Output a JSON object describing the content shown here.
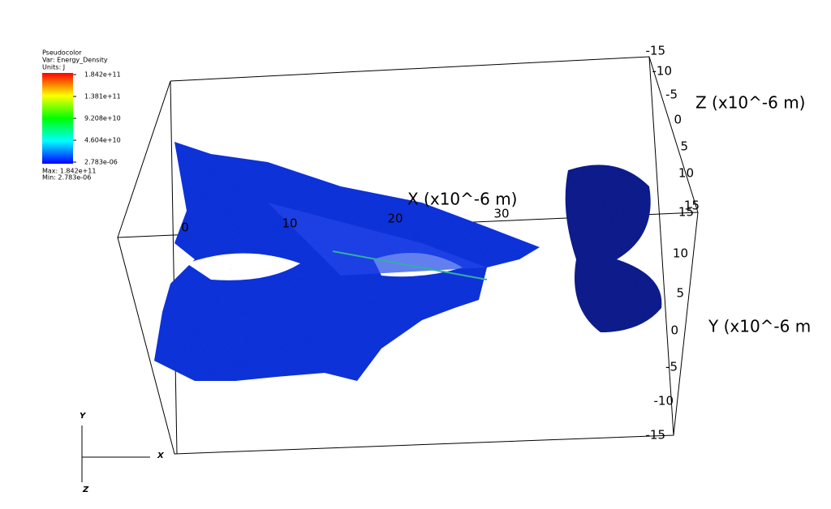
{
  "legend": {
    "title": "Pseudocolor",
    "variable": "Var: Energy_Density",
    "units": "Units: J",
    "ticks": [
      "1.842e+11",
      "1.381e+11",
      "9.208e+10",
      "4.604e+10",
      "2.783e-06"
    ],
    "max": "Max:  1.842e+11",
    "min": "Min:  2.783e-06"
  },
  "axes": {
    "x": {
      "title": "X (x10^-6 m)",
      "ticks": [
        "0",
        "10",
        "20",
        "30"
      ]
    },
    "y": {
      "title": "Y (x10^-6 m",
      "ticks": [
        "15",
        "10",
        "5",
        "0",
        "-5",
        "-10",
        "-15"
      ]
    },
    "z": {
      "title": "Z (x10^-6 m)",
      "ticks": [
        "-15",
        "-10",
        "-5",
        "0",
        "5",
        "10",
        "15"
      ]
    }
  },
  "triad": {
    "x": "X",
    "y": "Y",
    "z": "Z"
  }
}
